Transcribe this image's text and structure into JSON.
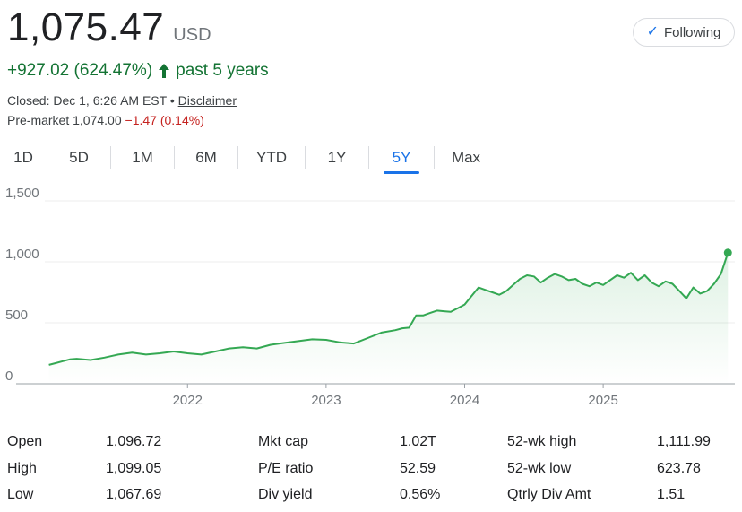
{
  "quote": {
    "price": "1,075.47",
    "currency": "USD",
    "change": "+927.02 (624.47%)",
    "change_period": "past 5 years",
    "closed_text": "Closed: Dec 1, 6:26 AM EST",
    "separator": "•",
    "disclaimer": "Disclaimer",
    "premarket_label": "Pre-market 1,074.00",
    "premarket_change": "−1.47 (0.14%)"
  },
  "follow_button": {
    "label": "Following"
  },
  "tabs": [
    {
      "label": "1D",
      "active": false
    },
    {
      "label": "5D",
      "active": false
    },
    {
      "label": "1M",
      "active": false
    },
    {
      "label": "6M",
      "active": false
    },
    {
      "label": "YTD",
      "active": false
    },
    {
      "label": "1Y",
      "active": false
    },
    {
      "label": "5Y",
      "active": true
    },
    {
      "label": "Max",
      "active": false
    }
  ],
  "colors": {
    "line": "#34a853",
    "up": "#137333",
    "down": "#c5221f",
    "accent": "#1a73e8"
  },
  "icons": {
    "follow": "check-icon",
    "trend": "arrow-up-icon"
  },
  "chart_data": {
    "type": "area",
    "title": "",
    "xlabel": "",
    "ylabel": "",
    "ylim": [
      0,
      1500
    ],
    "xlim": [
      2020.97,
      2025.95
    ],
    "yticks": [
      "0",
      "500",
      "1,000",
      "1,500"
    ],
    "yticks_values": [
      0,
      500,
      1000,
      1500
    ],
    "xticks": [
      "2022",
      "2023",
      "2024",
      "2025"
    ],
    "xticks_values": [
      2022,
      2023,
      2024,
      2025
    ],
    "grid": true,
    "series": [
      {
        "x": [
          2021.0,
          2021.05,
          2021.1,
          2021.15,
          2021.2,
          2021.3,
          2021.4,
          2021.5,
          2021.6,
          2021.7,
          2021.8,
          2021.9,
          2022.0,
          2022.1,
          2022.2,
          2022.3,
          2022.4,
          2022.5,
          2022.6,
          2022.7,
          2022.8,
          2022.9,
          2023.0,
          2023.1,
          2023.2,
          2023.3,
          2023.4,
          2023.5,
          2023.55,
          2023.6,
          2023.65,
          2023.7,
          2023.75,
          2023.8,
          2023.85,
          2023.9,
          2023.95,
          2024.0,
          2024.05,
          2024.1,
          2024.15,
          2024.2,
          2024.25,
          2024.3,
          2024.35,
          2024.4,
          2024.45,
          2024.5,
          2024.55,
          2024.6,
          2024.65,
          2024.7,
          2024.75,
          2024.8,
          2024.85,
          2024.9,
          2024.95,
          2025.0,
          2025.05,
          2025.1,
          2025.15,
          2025.2,
          2025.25,
          2025.3,
          2025.35,
          2025.4,
          2025.45,
          2025.5,
          2025.55,
          2025.6,
          2025.65,
          2025.7,
          2025.75,
          2025.8,
          2025.85,
          2025.9
        ],
        "y": [
          155,
          170,
          185,
          200,
          205,
          195,
          215,
          240,
          255,
          240,
          250,
          265,
          250,
          240,
          265,
          290,
          300,
          290,
          320,
          335,
          350,
          365,
          360,
          340,
          330,
          375,
          420,
          440,
          455,
          460,
          560,
          560,
          580,
          600,
          595,
          590,
          620,
          650,
          720,
          790,
          770,
          750,
          730,
          760,
          810,
          860,
          890,
          880,
          830,
          870,
          900,
          880,
          850,
          860,
          820,
          800,
          830,
          810,
          850,
          890,
          870,
          910,
          850,
          890,
          830,
          800,
          840,
          820,
          760,
          700,
          790,
          740,
          760,
          820,
          900,
          1075
        ]
      }
    ]
  },
  "stats": {
    "col1": [
      {
        "label": "Open",
        "value": "1,096.72"
      },
      {
        "label": "High",
        "value": "1,099.05"
      },
      {
        "label": "Low",
        "value": "1,067.69"
      }
    ],
    "col2": [
      {
        "label": "Mkt cap",
        "value": "1.02T"
      },
      {
        "label": "P/E ratio",
        "value": "52.59"
      },
      {
        "label": "Div yield",
        "value": "0.56%"
      }
    ],
    "col3": [
      {
        "label": "52-wk high",
        "value": "1,111.99"
      },
      {
        "label": "52-wk low",
        "value": "623.78"
      },
      {
        "label": "Qtrly Div Amt",
        "value": "1.51"
      }
    ]
  }
}
